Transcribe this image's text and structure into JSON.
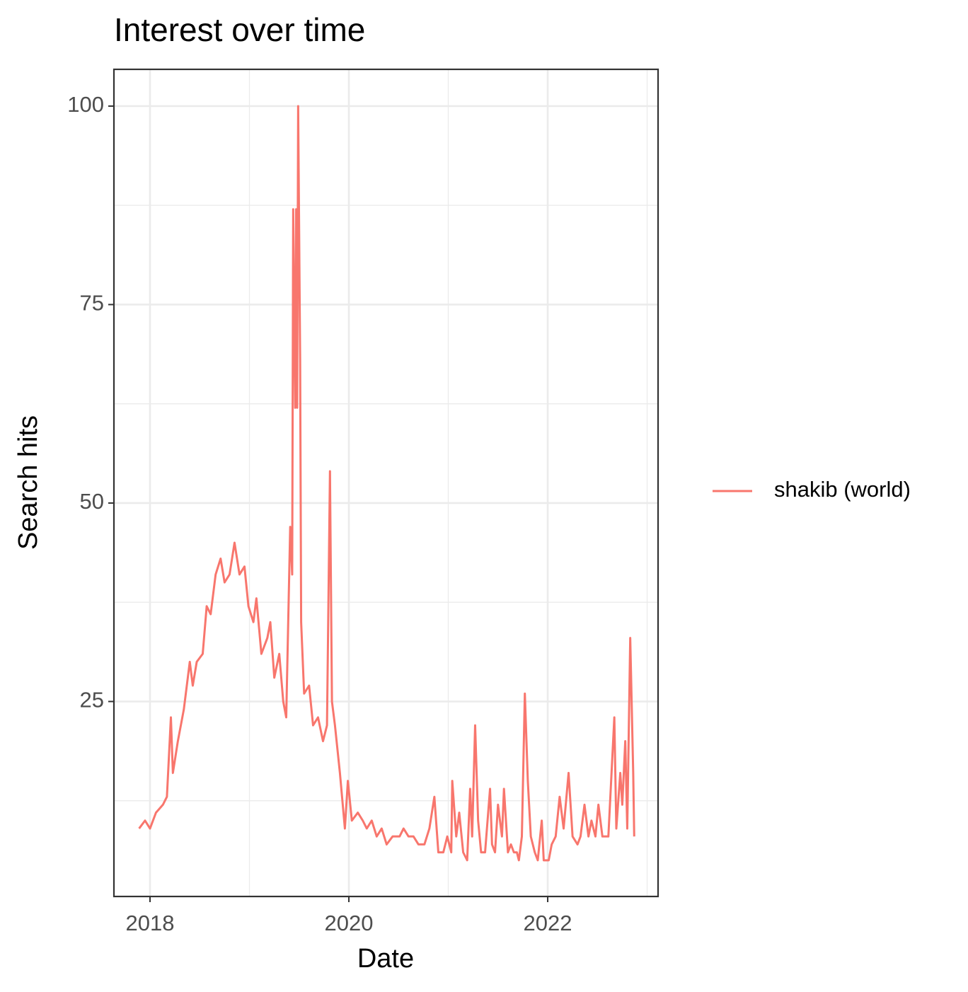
{
  "chart_data": {
    "type": "line",
    "title": "Interest over time",
    "x_label": "Date",
    "y_label": "Search hits",
    "x": [
      2017.89,
      2017.95,
      2018.0,
      2018.06,
      2018.13,
      2018.17,
      2018.21,
      2018.23,
      2018.28,
      2018.34,
      2018.4,
      2018.43,
      2018.47,
      2018.53,
      2018.57,
      2018.61,
      2018.66,
      2018.71,
      2018.75,
      2018.8,
      2018.85,
      2018.9,
      2018.95,
      2018.99,
      2019.04,
      2019.07,
      2019.12,
      2019.18,
      2019.21,
      2019.25,
      2019.3,
      2019.34,
      2019.37,
      2019.41,
      2019.43,
      2019.44,
      2019.46,
      2019.47,
      2019.48,
      2019.49,
      2019.51,
      2019.52,
      2019.55,
      2019.6,
      2019.64,
      2019.69,
      2019.74,
      2019.78,
      2019.81,
      2019.83,
      2019.86,
      2019.91,
      2019.96,
      2019.99,
      2020.03,
      2020.09,
      2020.14,
      2020.18,
      2020.23,
      2020.28,
      2020.33,
      2020.38,
      2020.44,
      2020.51,
      2020.55,
      2020.6,
      2020.65,
      2020.7,
      2020.76,
      2020.81,
      2020.86,
      2020.9,
      2020.95,
      2020.99,
      2021.03,
      2021.04,
      2021.08,
      2021.11,
      2021.15,
      2021.19,
      2021.22,
      2021.24,
      2021.27,
      2021.3,
      2021.33,
      2021.37,
      2021.42,
      2021.44,
      2021.47,
      2021.5,
      2021.54,
      2021.56,
      2021.6,
      2021.63,
      2021.66,
      2021.69,
      2021.71,
      2021.74,
      2021.77,
      2021.8,
      2021.83,
      2021.87,
      2021.9,
      2021.94,
      2021.96,
      2022.01,
      2022.04,
      2022.08,
      2022.12,
      2022.16,
      2022.21,
      2022.25,
      2022.3,
      2022.33,
      2022.37,
      2022.41,
      2022.44,
      2022.48,
      2022.51,
      2022.55,
      2022.61,
      2022.67,
      2022.69,
      2022.73,
      2022.75,
      2022.78,
      2022.8,
      2022.83,
      2022.86,
      2022.87
    ],
    "series": [
      {
        "name": "shakib (world)",
        "color": "#F8766D",
        "values": [
          9,
          10,
          9,
          11,
          12,
          13,
          23,
          16,
          20,
          24,
          30,
          27,
          30,
          31,
          37,
          36,
          41,
          43,
          40,
          41,
          45,
          41,
          42,
          37,
          35,
          38,
          31,
          33,
          35,
          28,
          31,
          25,
          23,
          47,
          41,
          87,
          62,
          87,
          62,
          100,
          68,
          35,
          26,
          27,
          22,
          23,
          20,
          22,
          54,
          25,
          22,
          16,
          9,
          15,
          10,
          11,
          10,
          9,
          10,
          8,
          9,
          7,
          8,
          8,
          9,
          8,
          8,
          7,
          7,
          9,
          13,
          6,
          6,
          8,
          6,
          15,
          8,
          11,
          6,
          5,
          14,
          8,
          22,
          10,
          6,
          6,
          14,
          7,
          6,
          12,
          8,
          14,
          6,
          7,
          6,
          6,
          5,
          8,
          26,
          15,
          8,
          6,
          5,
          10,
          5,
          5,
          7,
          8,
          13,
          9,
          16,
          8,
          7,
          8,
          12,
          8,
          10,
          8,
          12,
          8,
          8,
          23,
          9,
          16,
          12,
          20,
          9,
          33,
          16,
          8
        ]
      }
    ],
    "xlim": [
      2017.637,
      2023.11
    ],
    "xticks": [
      2018,
      2020,
      2022
    ],
    "xminor": [
      2019,
      2021,
      2023
    ],
    "ylim": [
      0.44,
      104.63
    ],
    "yticks": [
      25,
      50,
      75,
      100
    ],
    "yminor": [
      12.5,
      37.5,
      62.5,
      87.5
    ],
    "grid": true,
    "legend": "right"
  }
}
